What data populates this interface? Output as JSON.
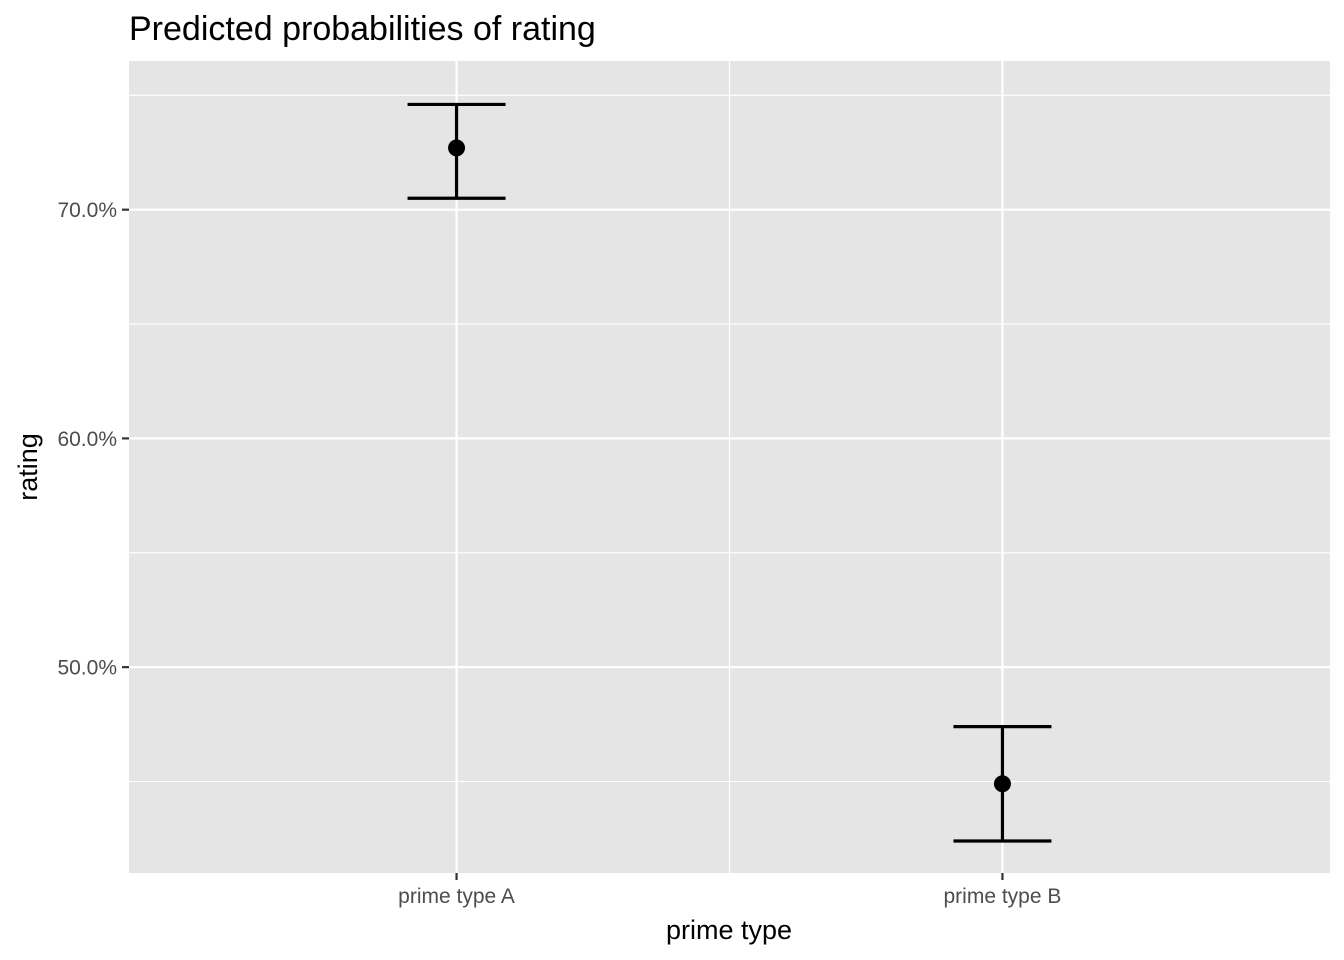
{
  "chart_data": {
    "type": "scatter",
    "title": "Predicted probabilities of rating",
    "xlabel": "prime type",
    "ylabel": "rating",
    "categories": [
      "prime type A",
      "prime type B"
    ],
    "series": [
      {
        "values": [
          72.7,
          44.9
        ],
        "lower": [
          70.5,
          42.4
        ],
        "upper": [
          74.6,
          47.4
        ]
      }
    ],
    "y_ticks": [
      50,
      60,
      70
    ],
    "y_tick_labels": [
      "50.0%",
      "60.0%",
      "70.0%"
    ],
    "ylim": [
      41.0,
      76.5
    ],
    "grid": true,
    "legend": "none",
    "colors": {
      "panel": "#e5e5e5",
      "grid": "#ffffff",
      "marks": "#000000",
      "tick_text": "#4d4d4d"
    }
  }
}
